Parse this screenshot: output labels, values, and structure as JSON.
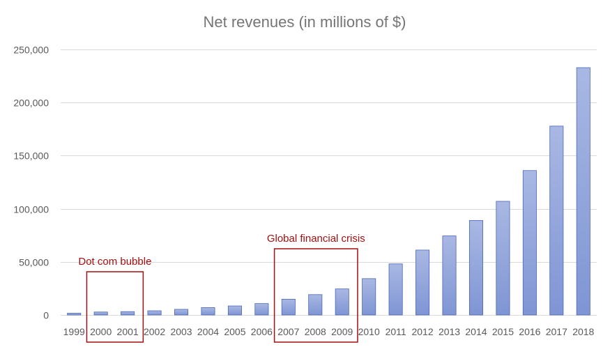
{
  "chart_data": {
    "type": "bar",
    "title": "Net revenues (in millions of $)",
    "xlabel": "",
    "ylabel": "",
    "categories": [
      "1999",
      "2000",
      "2001",
      "2002",
      "2003",
      "2004",
      "2005",
      "2006",
      "2007",
      "2008",
      "2009",
      "2010",
      "2011",
      "2012",
      "2013",
      "2014",
      "2015",
      "2016",
      "2017",
      "2018"
    ],
    "series": [
      {
        "name": "Net revenues",
        "values": [
          1640,
          2762,
          3122,
          3933,
          5264,
          6921,
          8490,
          10711,
          14835,
          19166,
          24509,
          34204,
          48077,
          61093,
          74452,
          88988,
          107006,
          135987,
          177866,
          232887
        ]
      }
    ],
    "ylim": [
      0,
      250000
    ],
    "yticks": [
      0,
      50000,
      100000,
      150000,
      200000,
      250000
    ],
    "ytick_labels": [
      "0",
      "50,000",
      "100,000",
      "150,000",
      "200,000",
      "250,000"
    ],
    "grid": true,
    "legend": "none",
    "colors": {
      "bar_fill": "#8fa3d9",
      "bar_stroke": "#4a66b8",
      "grid": "#d9d9d9",
      "annotation": "#a50f0f"
    },
    "annotations": [
      {
        "label": "Dot com bubble",
        "from_category": "2000",
        "to_category": "2001"
      },
      {
        "label": "Global financial crisis",
        "from_category": "2007",
        "to_category": "2009"
      }
    ]
  }
}
